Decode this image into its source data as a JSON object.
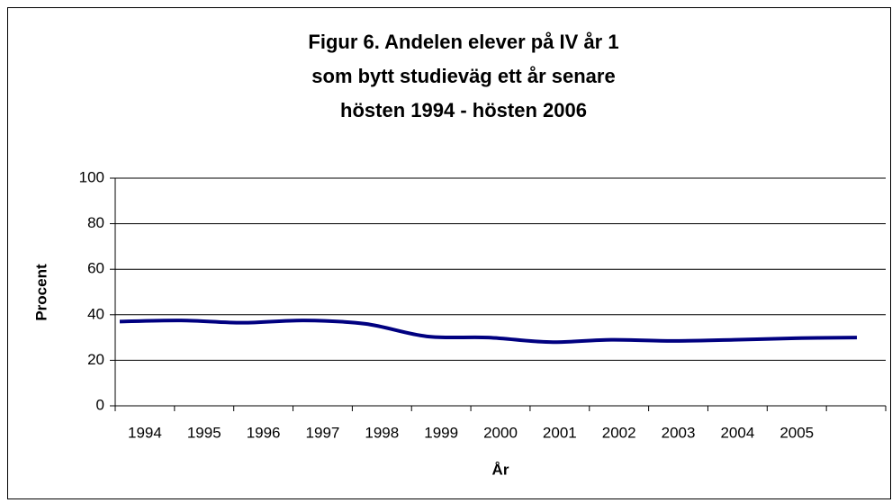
{
  "chart_data": {
    "type": "line",
    "title": [
      "Figur 6. Andelen elever på IV år 1",
      "som bytt studieväg ett år senare",
      "hösten 1994 - hösten 2006"
    ],
    "x_label": "År",
    "y_label": "Procent",
    "categories": [
      "1994",
      "1995",
      "1996",
      "1997",
      "1998",
      "1999",
      "2000",
      "2001",
      "2002",
      "2003",
      "2004",
      "2005",
      null
    ],
    "series": [
      {
        "color": "#000080",
        "values": [
          37,
          37.5,
          36.5,
          37.5,
          36,
          30.5,
          30,
          28,
          29,
          28.5,
          29,
          29.7,
          30
        ]
      }
    ],
    "ylim": [
      0,
      100
    ],
    "yticks": [
      0,
      20,
      40,
      60,
      80,
      100
    ],
    "grid": true
  }
}
